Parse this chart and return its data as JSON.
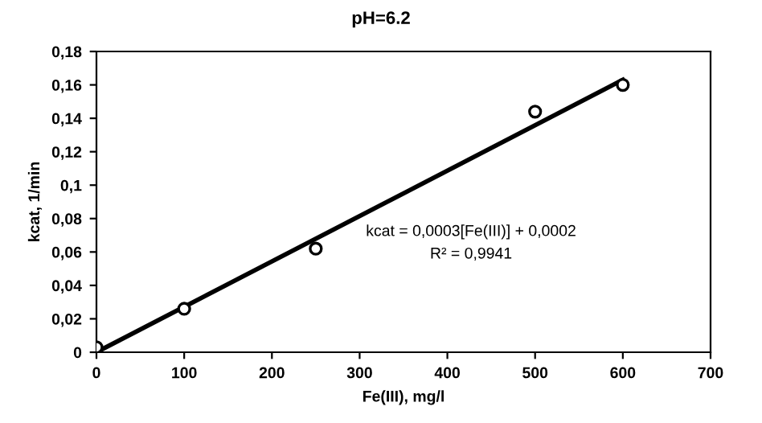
{
  "chart_data": {
    "type": "scatter",
    "title": "pH=6.2",
    "xlabel": "Fe(III), mg/l",
    "ylabel": "kcat, 1/min",
    "x": [
      0,
      100,
      250,
      500,
      600
    ],
    "series": [
      {
        "color": "#000000",
        "marker": "circle",
        "values": [
          0.003,
          0.026,
          0.062,
          0.144,
          0.16
        ]
      },
      {
        "type": "line",
        "color": "#000000",
        "marker": "none",
        "line_style": "solid",
        "x": [
          0,
          600
        ],
        "values": [
          0.0,
          0.163
        ]
      }
    ],
    "annotations": [
      "kcat = 0,0003[Fe(III)] + 0,0002",
      "R² = 0,9941"
    ],
    "xlim": [
      0,
      700
    ],
    "xticks": [
      0,
      100,
      200,
      300,
      400,
      500,
      600,
      700
    ],
    "ylim": [
      0,
      0.18
    ],
    "yticks": [
      {
        "value": 0,
        "label": "0"
      },
      {
        "value": 0.02,
        "label": "0,02"
      },
      {
        "value": 0.04,
        "label": "0,04"
      },
      {
        "value": 0.06,
        "label": "0,06"
      },
      {
        "value": 0.08,
        "label": "0,08"
      },
      {
        "value": 0.1,
        "label": "0,1"
      },
      {
        "value": 0.12,
        "label": "0,12"
      },
      {
        "value": 0.14,
        "label": "0,14"
      },
      {
        "value": 0.16,
        "label": "0,16"
      },
      {
        "value": 0.18,
        "label": "0,18"
      }
    ],
    "grid": false,
    "legend": false
  }
}
